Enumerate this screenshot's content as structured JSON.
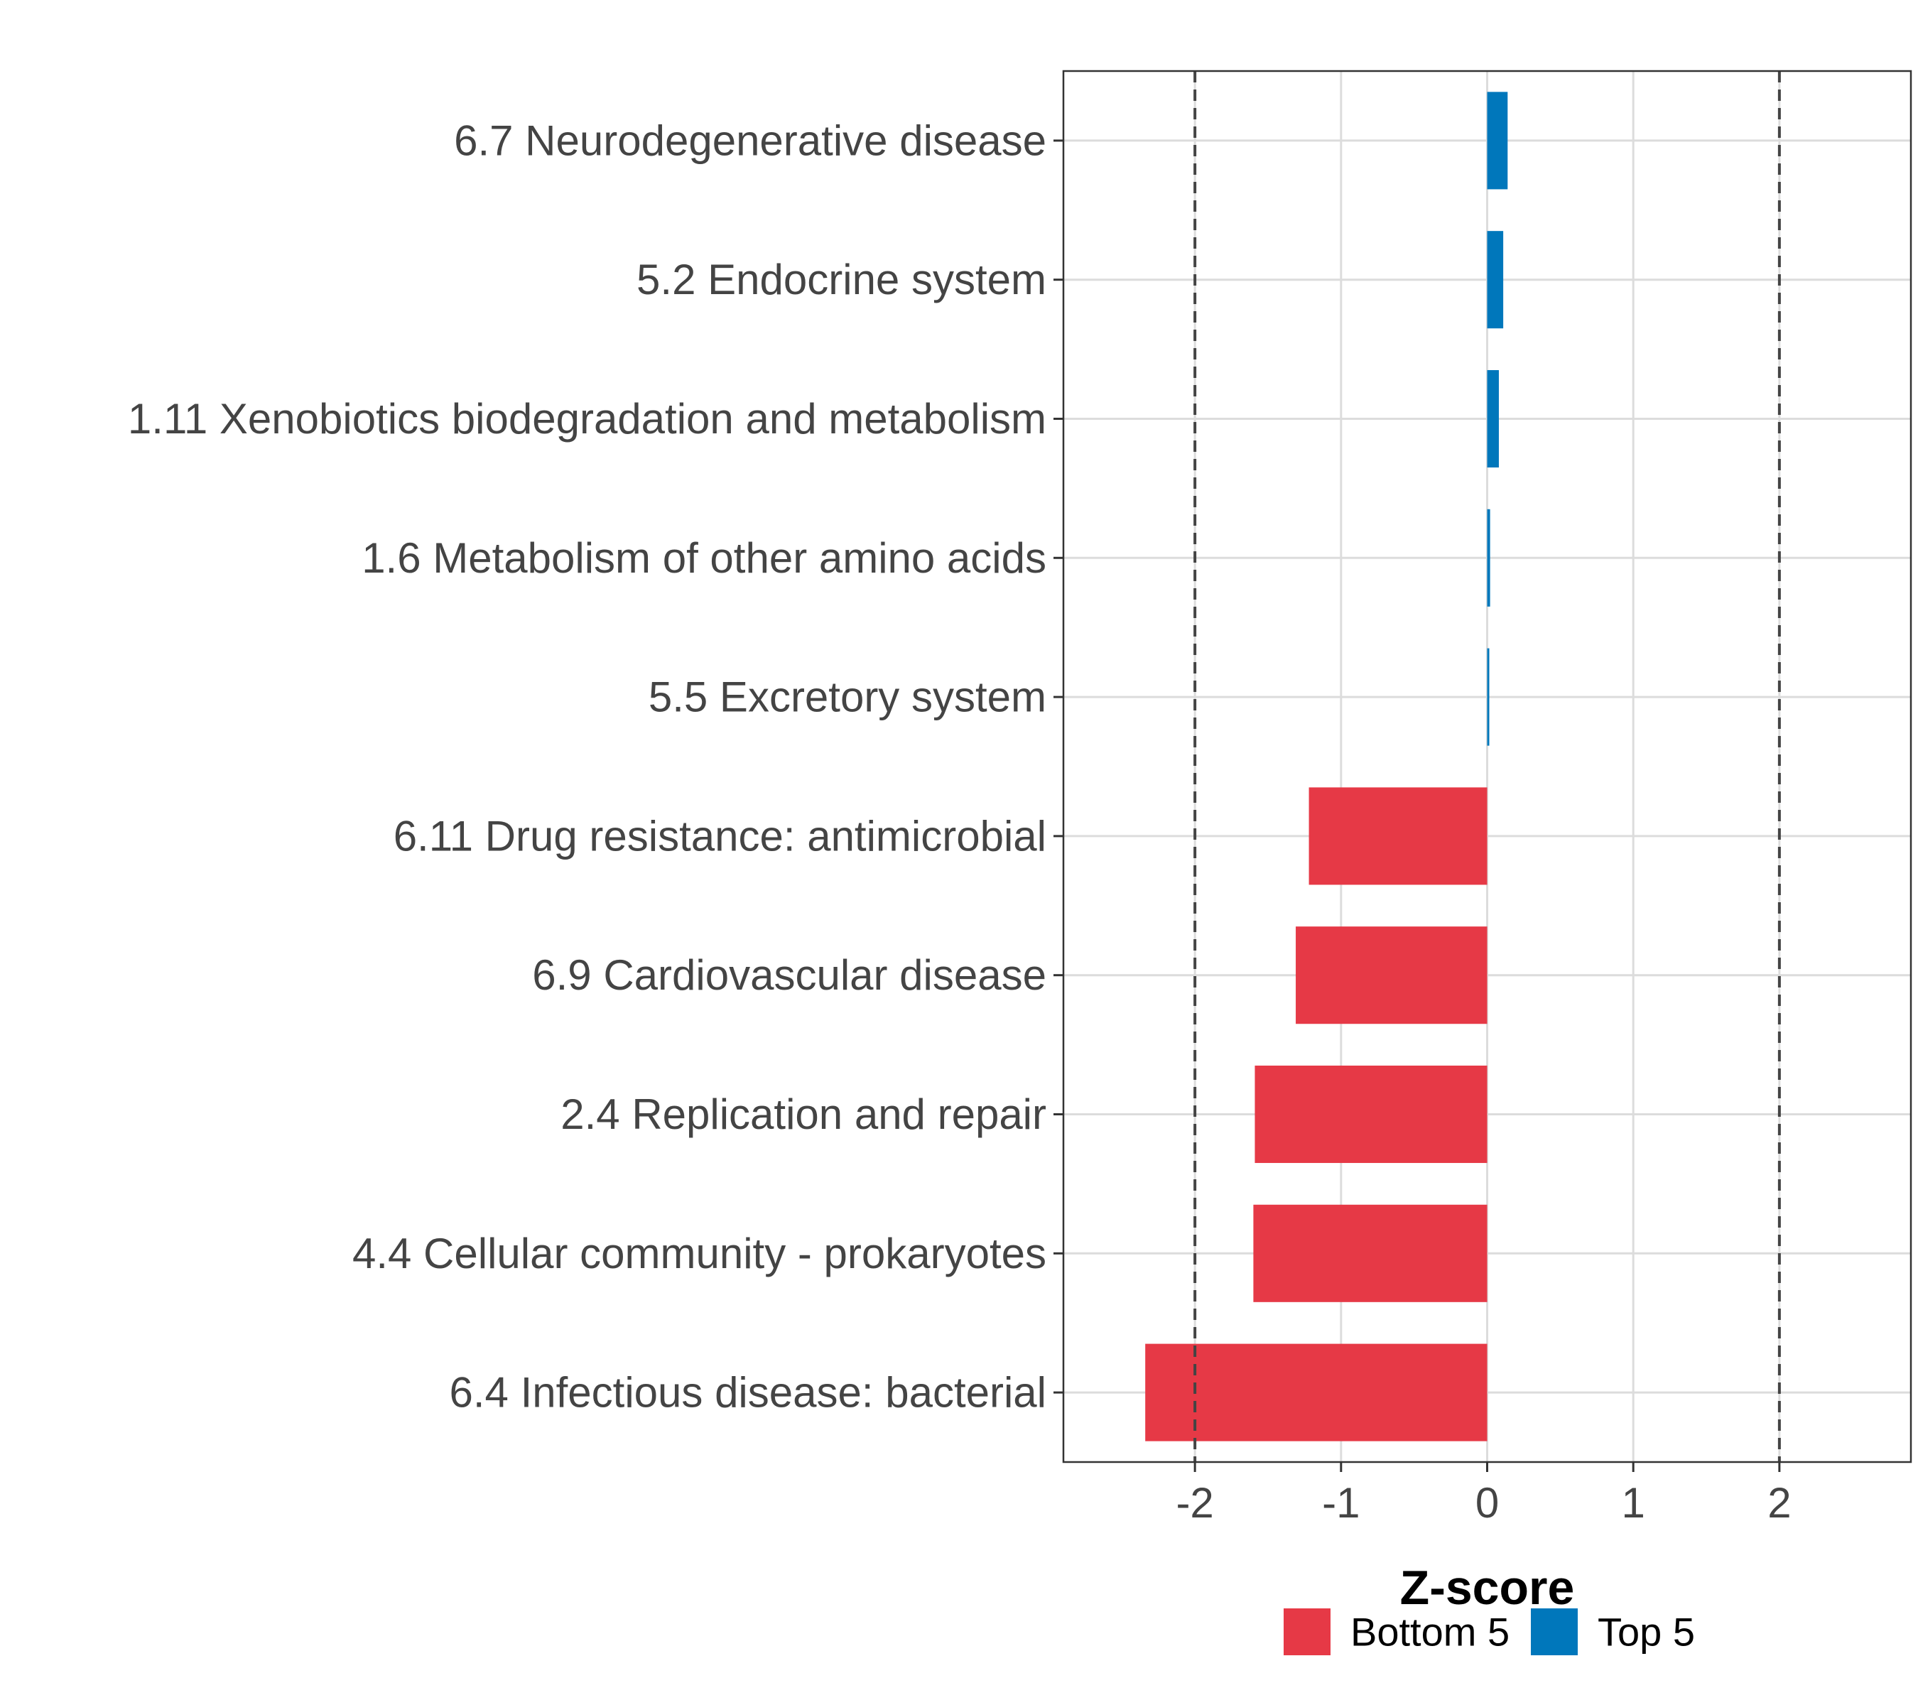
{
  "chart_data": {
    "type": "bar",
    "orientation": "horizontal",
    "xlabel": "Z-score",
    "ylabel": "",
    "xlim": [
      -2.9,
      2.9
    ],
    "x_ticks": [
      -2,
      -1,
      0,
      1,
      2
    ],
    "x_tick_labels": [
      "-2",
      "-1",
      "0",
      "1",
      "2"
    ],
    "reference_lines": [
      -2,
      2
    ],
    "grid": true,
    "legend_position": "bottom",
    "categories": [
      "6.7 Neurodegenerative disease",
      "5.2 Endocrine system",
      "1.11 Xenobiotics biodegradation and metabolism",
      "1.6 Metabolism of other amino acids",
      "5.5 Excretory system",
      "6.11 Drug resistance: antimicrobial",
      "6.9 Cardiovascular disease",
      "2.4 Replication and repair",
      "4.4 Cellular community - prokaryotes",
      "6.4 Infectious disease: bacterial"
    ],
    "values": [
      0.14,
      0.11,
      0.08,
      0.02,
      0.01,
      -1.22,
      -1.31,
      -1.59,
      -1.6,
      -2.34
    ],
    "groups": [
      "Top 5",
      "Top 5",
      "Top 5",
      "Top 5",
      "Top 5",
      "Bottom 5",
      "Bottom 5",
      "Bottom 5",
      "Bottom 5",
      "Bottom 5"
    ],
    "series": [
      {
        "name": "Bottom 5",
        "color": "#E63946"
      },
      {
        "name": "Top 5",
        "color": "#0077BB"
      }
    ]
  }
}
